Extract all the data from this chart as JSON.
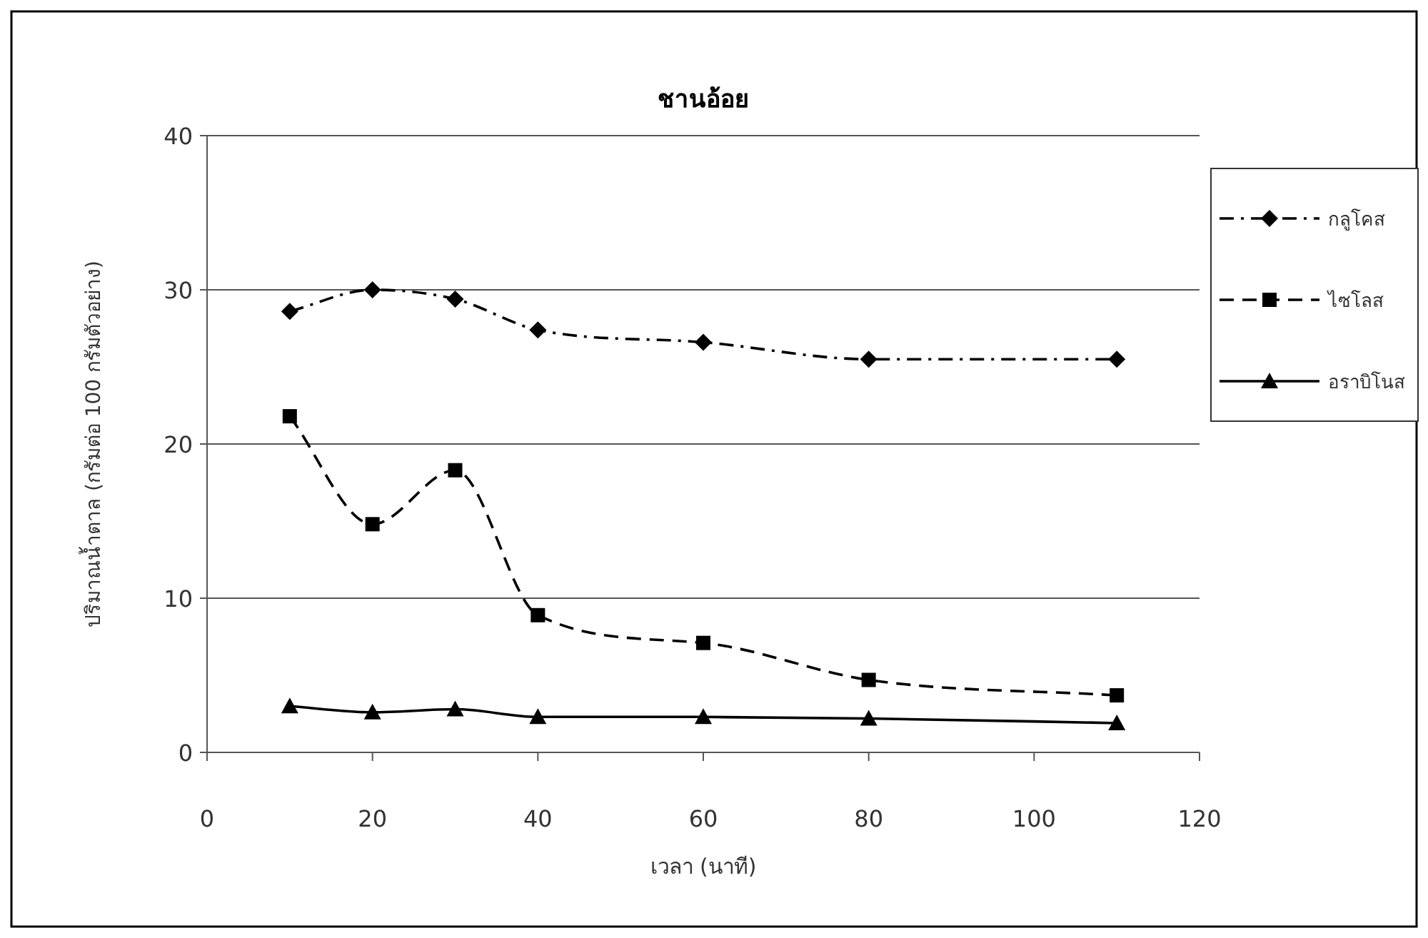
{
  "chart_data": {
    "type": "line",
    "title": "ชานอ้อย",
    "xlabel": "เวลา (นาที)",
    "ylabel": "ปริมาณน้ำตาล (กรัมต่อ 100 กรัมตัวอย่าง)",
    "x": [
      10,
      20,
      30,
      40,
      60,
      80,
      110
    ],
    "series": [
      {
        "name": "กลูโคส",
        "color": "#000000",
        "marker": "diamond",
        "line_style": "dashdot",
        "values": [
          28.6,
          30.0,
          29.4,
          27.4,
          26.6,
          25.5,
          25.5
        ]
      },
      {
        "name": "ไซโลส",
        "color": "#000000",
        "marker": "square",
        "line_style": "dashed",
        "values": [
          21.8,
          14.8,
          18.3,
          8.9,
          7.1,
          4.7,
          3.7
        ]
      },
      {
        "name": "อราบิโนส",
        "color": "#000000",
        "marker": "triangle",
        "line_style": "solid",
        "values": [
          3.0,
          2.6,
          2.8,
          2.3,
          2.3,
          2.2,
          1.9
        ]
      }
    ],
    "xlim": [
      0,
      120
    ],
    "xticks": [
      0,
      20,
      40,
      60,
      80,
      100,
      120
    ],
    "ylim": [
      0,
      40
    ],
    "yticks": [
      0,
      10,
      20,
      30,
      40
    ],
    "grid": "y",
    "legend": "right"
  }
}
